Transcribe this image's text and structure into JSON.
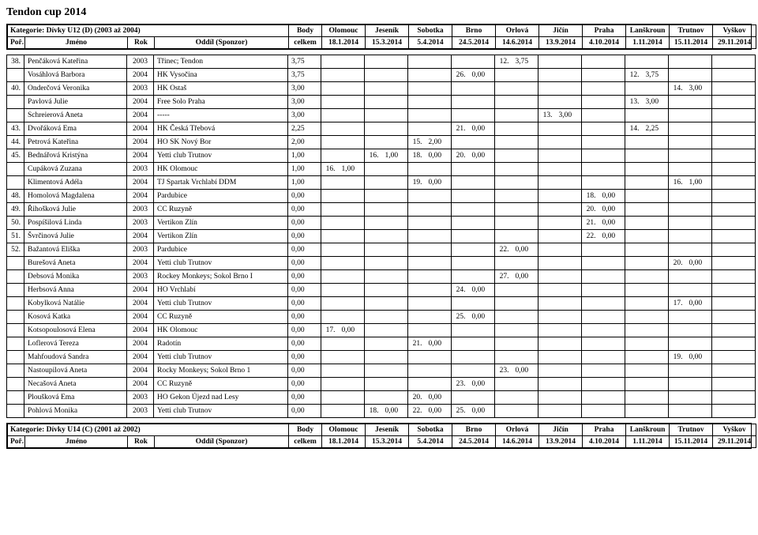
{
  "title": "Tendon cup 2014",
  "events": {
    "labels": [
      "Olomouc",
      "Jeseník",
      "Sobotka",
      "Brno",
      "Orlová",
      "Jičín",
      "Praha",
      "Lanškroun",
      "Trutnov",
      "Vyškov"
    ],
    "dates": [
      "18.1.2014",
      "15.3.2014",
      "5.4.2014",
      "24.5.2014",
      "14.6.2014",
      "13.9.2014",
      "4.10.2014",
      "1.11.2014",
      "15.11.2014",
      "29.11.2014"
    ]
  },
  "columns": {
    "rank": "Poř.",
    "name": "Jméno",
    "year": "Rok",
    "club": "Oddíl (Sponzor)",
    "totalHead": "Body",
    "total": "celkem"
  },
  "categories": [
    {
      "title": "Kategorie: Dívky U12 (D) (2003 až 2004)"
    },
    {
      "title": "Kategorie: Dívky U14 (C) (2001 až 2002)"
    }
  ],
  "rows": [
    {
      "rank": "38.",
      "name": "Penčáková Kateřina",
      "year": "2003",
      "club": "Třinec; Tendon",
      "total": "3,75",
      "results": [
        null,
        null,
        null,
        null,
        [
          "12.",
          "3,75"
        ],
        null,
        null,
        null,
        null,
        null
      ]
    },
    {
      "rank": "",
      "name": "Vosáhlová Barbora",
      "year": "2004",
      "club": "HK Vysočina",
      "total": "3,75",
      "results": [
        null,
        null,
        null,
        [
          "26.",
          "0,00"
        ],
        null,
        null,
        null,
        [
          "12.",
          "3,75"
        ],
        null,
        null
      ]
    },
    {
      "rank": "40.",
      "name": "Onderčová Veronika",
      "year": "2003",
      "club": "HK Ostaš",
      "total": "3,00",
      "results": [
        null,
        null,
        null,
        null,
        null,
        null,
        null,
        null,
        [
          "14.",
          "3,00"
        ],
        null
      ]
    },
    {
      "rank": "",
      "name": "Pavlová Julie",
      "year": "2004",
      "club": "Free Solo Praha",
      "total": "3,00",
      "results": [
        null,
        null,
        null,
        null,
        null,
        null,
        null,
        [
          "13.",
          "3,00"
        ],
        null,
        null
      ]
    },
    {
      "rank": "",
      "name": "Schreierová Aneta",
      "year": "2004",
      "club": "-----",
      "total": "3,00",
      "results": [
        null,
        null,
        null,
        null,
        null,
        [
          "13.",
          "3,00"
        ],
        null,
        null,
        null,
        null
      ]
    },
    {
      "rank": "43.",
      "name": "Dvořáková Ema",
      "year": "2004",
      "club": "HK Česká Třebová",
      "total": "2,25",
      "results": [
        null,
        null,
        null,
        [
          "21.",
          "0,00"
        ],
        null,
        null,
        null,
        [
          "14.",
          "2,25"
        ],
        null,
        null
      ]
    },
    {
      "rank": "44.",
      "name": "Petrová Kateřina",
      "year": "2004",
      "club": "HO SK Nový Bor",
      "total": "2,00",
      "results": [
        null,
        null,
        [
          "15.",
          "2,00"
        ],
        null,
        null,
        null,
        null,
        null,
        null,
        null
      ]
    },
    {
      "rank": "45.",
      "name": "Bednářová Kristýna",
      "year": "2004",
      "club": "Yetti club Trutnov",
      "total": "1,00",
      "results": [
        null,
        [
          "16.",
          "1,00"
        ],
        [
          "18.",
          "0,00"
        ],
        [
          "20.",
          "0,00"
        ],
        null,
        null,
        null,
        null,
        null,
        null
      ]
    },
    {
      "rank": "",
      "name": "Cupáková Zuzana",
      "year": "2003",
      "club": "HK Olomouc",
      "total": "1,00",
      "results": [
        [
          "16.",
          "1,00"
        ],
        null,
        null,
        null,
        null,
        null,
        null,
        null,
        null,
        null
      ]
    },
    {
      "rank": "",
      "name": "Klimentová Adéla",
      "year": "2004",
      "club": "TJ Spartak Vrchlabí DDM",
      "total": "1,00",
      "results": [
        null,
        null,
        [
          "19.",
          "0,00"
        ],
        null,
        null,
        null,
        null,
        null,
        [
          "16.",
          "1,00"
        ],
        null
      ]
    },
    {
      "rank": "48.",
      "name": "Homolová Magdalena",
      "year": "2004",
      "club": "Pardubice",
      "total": "0,00",
      "results": [
        null,
        null,
        null,
        null,
        null,
        null,
        [
          "18.",
          "0,00"
        ],
        null,
        null,
        null
      ]
    },
    {
      "rank": "49.",
      "name": "Řihošková Julie",
      "year": "2003",
      "club": "CC Ruzyně",
      "total": "0,00",
      "results": [
        null,
        null,
        null,
        null,
        null,
        null,
        [
          "20.",
          "0,00"
        ],
        null,
        null,
        null
      ]
    },
    {
      "rank": "50.",
      "name": "Pospíšilová Linda",
      "year": "2003",
      "club": "Vertikon Zlín",
      "total": "0,00",
      "results": [
        null,
        null,
        null,
        null,
        null,
        null,
        [
          "21.",
          "0,00"
        ],
        null,
        null,
        null
      ]
    },
    {
      "rank": "51.",
      "name": "Švrčinová Julie",
      "year": "2004",
      "club": "Vertikon Zlín",
      "total": "0,00",
      "results": [
        null,
        null,
        null,
        null,
        null,
        null,
        [
          "22.",
          "0,00"
        ],
        null,
        null,
        null
      ]
    },
    {
      "rank": "52.",
      "name": "Bažantová Eliška",
      "year": "2003",
      "club": "Pardubice",
      "total": "0,00",
      "results": [
        null,
        null,
        null,
        null,
        [
          "22.",
          "0,00"
        ],
        null,
        null,
        null,
        null,
        null
      ]
    },
    {
      "rank": "",
      "name": "Burešová Aneta",
      "year": "2004",
      "club": "Yetti club Trutnov",
      "total": "0,00",
      "results": [
        null,
        null,
        null,
        null,
        null,
        null,
        null,
        null,
        [
          "20.",
          "0,00"
        ],
        null
      ]
    },
    {
      "rank": "",
      "name": "Debsová Monika",
      "year": "2003",
      "club": "Rockey Monkeys; Sokol Brno I",
      "total": "0,00",
      "results": [
        null,
        null,
        null,
        null,
        [
          "27.",
          "0,00"
        ],
        null,
        null,
        null,
        null,
        null
      ]
    },
    {
      "rank": "",
      "name": "Herbsová Anna",
      "year": "2004",
      "club": "HO Vrchlabí",
      "total": "0,00",
      "results": [
        null,
        null,
        null,
        [
          "24.",
          "0,00"
        ],
        null,
        null,
        null,
        null,
        null,
        null
      ]
    },
    {
      "rank": "",
      "name": "Kobylková Natálie",
      "year": "2004",
      "club": "Yetti club Trutnov",
      "total": "0,00",
      "results": [
        null,
        null,
        null,
        null,
        null,
        null,
        null,
        null,
        [
          "17.",
          "0,00"
        ],
        null
      ]
    },
    {
      "rank": "",
      "name": "Kosová Katka",
      "year": "2004",
      "club": "CC Ruzyně",
      "total": "0,00",
      "results": [
        null,
        null,
        null,
        [
          "25.",
          "0,00"
        ],
        null,
        null,
        null,
        null,
        null,
        null
      ]
    },
    {
      "rank": "",
      "name": "Kotsopoulosová Elena",
      "year": "2004",
      "club": "HK Olomouc",
      "total": "0,00",
      "results": [
        [
          "17.",
          "0,00"
        ],
        null,
        null,
        null,
        null,
        null,
        null,
        null,
        null,
        null
      ]
    },
    {
      "rank": "",
      "name": "Loflerová Tereza",
      "year": "2004",
      "club": "Radotín",
      "total": "0,00",
      "results": [
        null,
        null,
        [
          "21.",
          "0,00"
        ],
        null,
        null,
        null,
        null,
        null,
        null,
        null
      ]
    },
    {
      "rank": "",
      "name": "Mahfoudová Sandra",
      "year": "2004",
      "club": "Yetti club Trutnov",
      "total": "0,00",
      "results": [
        null,
        null,
        null,
        null,
        null,
        null,
        null,
        null,
        [
          "19.",
          "0,00"
        ],
        null
      ]
    },
    {
      "rank": "",
      "name": "Nastoupilová Aneta",
      "year": "2004",
      "club": "Rocky Monkeys; Sokol Brno 1",
      "total": "0,00",
      "results": [
        null,
        null,
        null,
        null,
        [
          "23.",
          "0,00"
        ],
        null,
        null,
        null,
        null,
        null
      ]
    },
    {
      "rank": "",
      "name": "Necašová Aneta",
      "year": "2004",
      "club": "CC Ruzyně",
      "total": "0,00",
      "results": [
        null,
        null,
        null,
        [
          "23.",
          "0,00"
        ],
        null,
        null,
        null,
        null,
        null,
        null
      ]
    },
    {
      "rank": "",
      "name": "Ploušková Ema",
      "year": "2003",
      "club": "HO Gekon Újezd nad Lesy",
      "total": "0,00",
      "results": [
        null,
        null,
        [
          "20.",
          "0,00"
        ],
        null,
        null,
        null,
        null,
        null,
        null,
        null
      ]
    },
    {
      "rank": "",
      "name": "Pohlová Monika",
      "year": "2003",
      "club": "Yetti club Trutnov",
      "total": "0,00",
      "results": [
        null,
        [
          "18.",
          "0,00"
        ],
        [
          "22.",
          "0,00"
        ],
        [
          "25.",
          "0,00"
        ],
        null,
        null,
        null,
        null,
        null,
        null
      ]
    }
  ]
}
